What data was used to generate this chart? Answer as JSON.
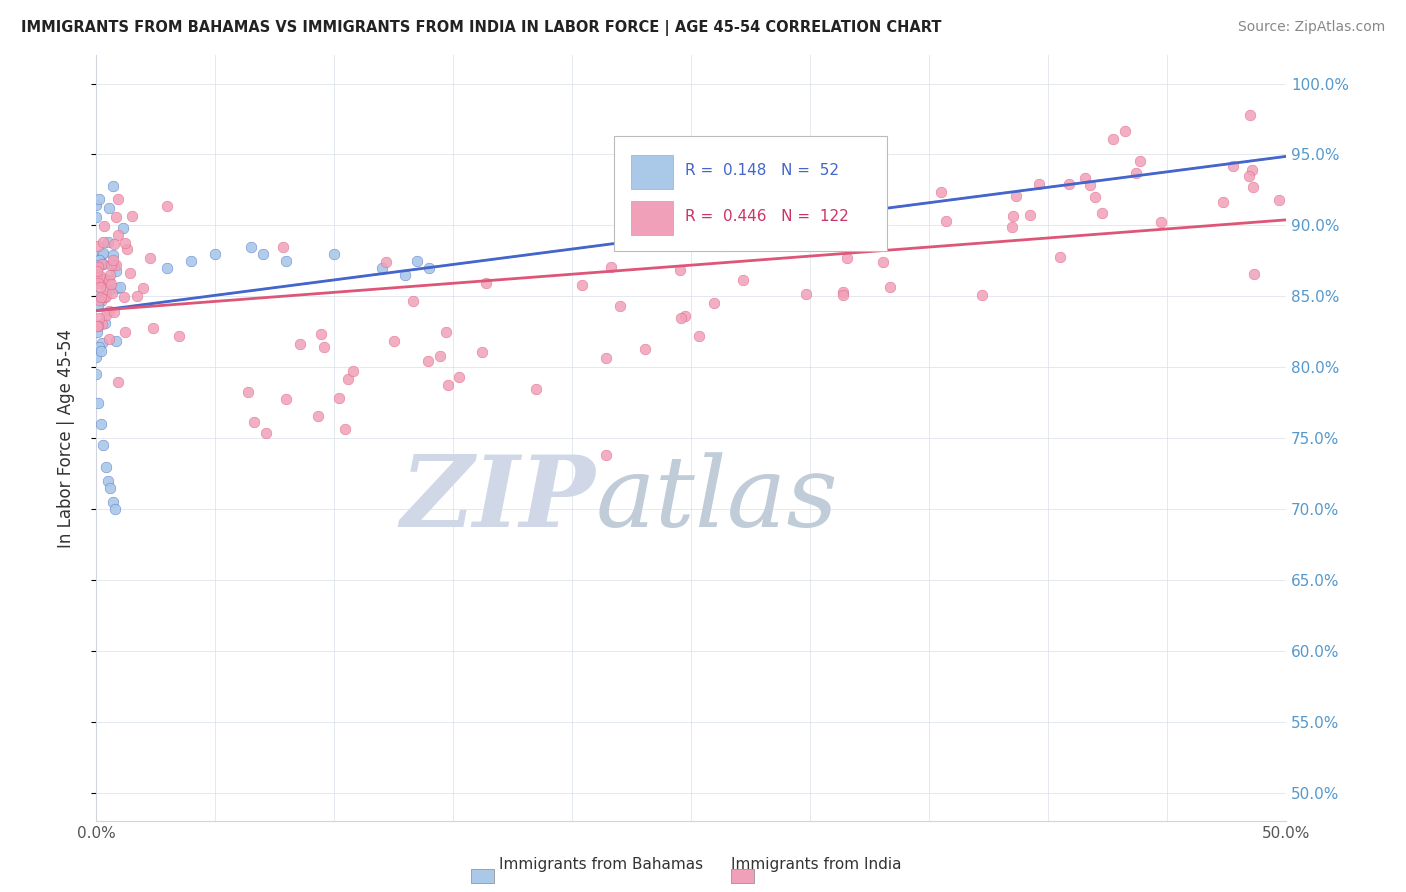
{
  "title": "IMMIGRANTS FROM BAHAMAS VS IMMIGRANTS FROM INDIA IN LABOR FORCE | AGE 45-54 CORRELATION CHART",
  "source": "Source: ZipAtlas.com",
  "ylabel": "In Labor Force | Age 45-54",
  "x_min": 0.0,
  "x_max": 0.5,
  "y_min": 0.48,
  "y_max": 1.02,
  "bahamas_color": "#aac8e8",
  "india_color": "#f0a0b8",
  "trend_bahamas_color": "#4466cc",
  "trend_india_color": "#dd5577",
  "legend_R_bahamas": "0.148",
  "legend_N_bahamas": "52",
  "legend_R_india": "0.446",
  "legend_N_india": "122",
  "legend_text_bahamas_color": "#4466cc",
  "legend_text_india_color": "#cc3366",
  "right_axis_color": "#5599cc",
  "watermark_zip_color": "#d0d8e8",
  "watermark_atlas_color": "#c0ccd8"
}
